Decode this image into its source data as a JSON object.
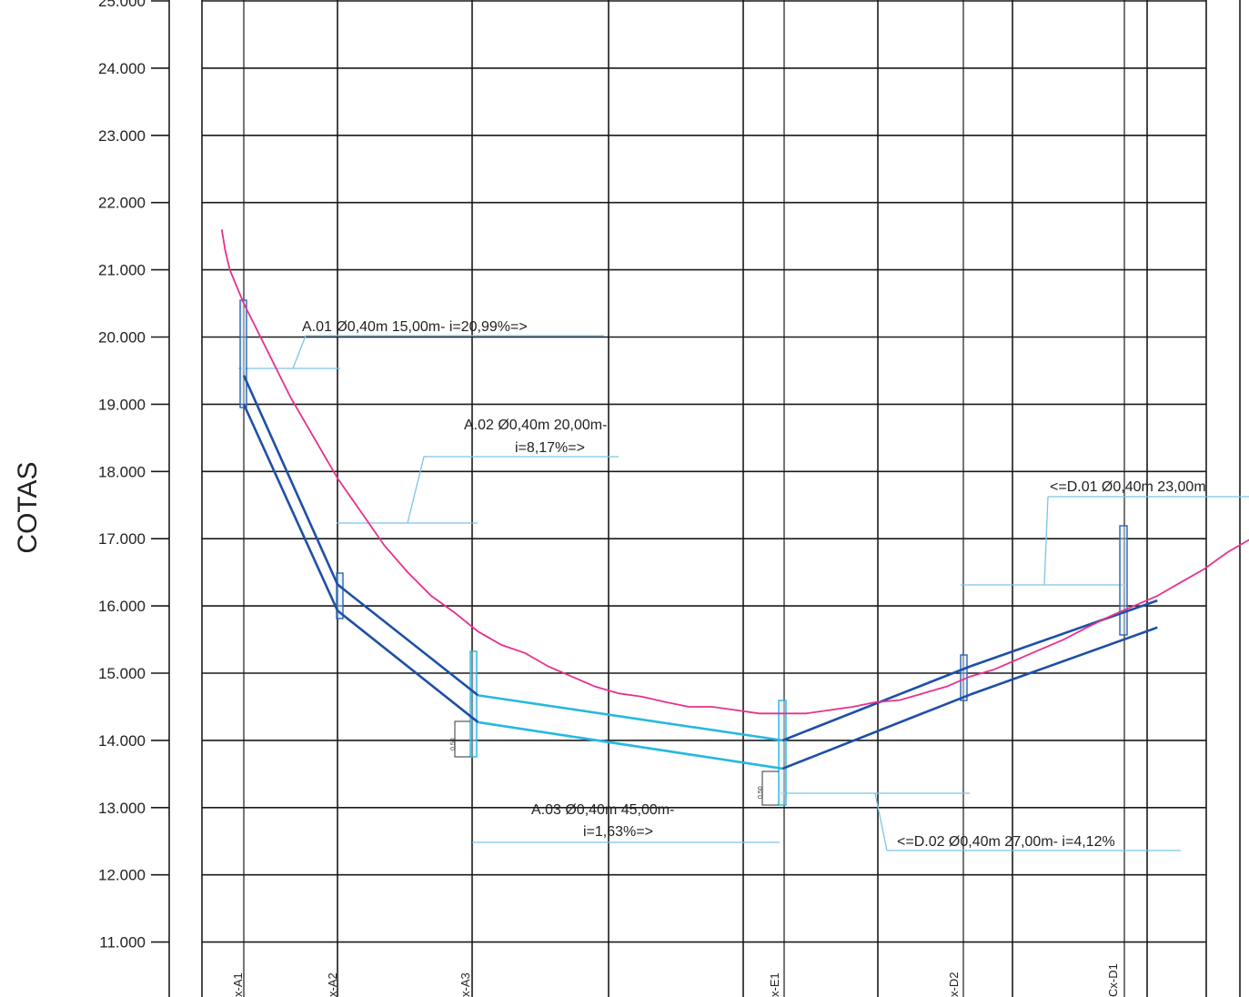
{
  "axis": {
    "title": "COTAS",
    "min": 11,
    "max": 25,
    "ticks": [
      "25.000",
      "24.000",
      "23.000",
      "22.000",
      "21.000",
      "20.000",
      "19.000",
      "18.000",
      "17.000",
      "16.000",
      "15.000",
      "14.000",
      "13.000",
      "12.000",
      "11.000"
    ]
  },
  "stations": [
    {
      "id": "A1",
      "label": "x-A1"
    },
    {
      "id": "A2",
      "label": "x-A2"
    },
    {
      "id": "A3",
      "label": "x-A3"
    },
    {
      "id": "E1",
      "label": "x-E1"
    },
    {
      "id": "D2",
      "label": "x-D2"
    },
    {
      "id": "D1",
      "label": "Cx-D1"
    }
  ],
  "pipes": [
    {
      "id": "A01",
      "lines": [
        "A.01  Ø0,40m 15,00m- i=20,99%=>"
      ]
    },
    {
      "id": "A02",
      "lines": [
        "A.02  Ø0,40m 20,00m-",
        "i=8,17%=>"
      ]
    },
    {
      "id": "A03",
      "lines": [
        "A.03  Ø0,40m 45,00m-",
        "i=1,63%=>"
      ]
    },
    {
      "id": "D01",
      "lines": [
        "<=D.01  Ø0,40m 23,00m"
      ]
    },
    {
      "id": "D02",
      "lines": [
        "<=D.02  Ø0,40m 27,00m- i=4,12%"
      ]
    }
  ],
  "drop_labels": [
    "0,50",
    "0,50"
  ],
  "terrain_profile": [
    [
      -0.47,
      21.6
    ],
    [
      -0.4,
      21.3
    ],
    [
      -0.3,
      21.0
    ],
    [
      0,
      20.5
    ],
    [
      0.5,
      19.8
    ],
    [
      1,
      19.1
    ],
    [
      1.5,
      18.5
    ],
    [
      2,
      17.9
    ],
    [
      2.5,
      17.4
    ],
    [
      3,
      16.9
    ],
    [
      3.5,
      16.5
    ],
    [
      4,
      16.15
    ],
    [
      4.5,
      15.9
    ],
    [
      5,
      15.62
    ],
    [
      5.5,
      15.42
    ],
    [
      6,
      15.3
    ],
    [
      6.5,
      15.1
    ],
    [
      7,
      14.95
    ],
    [
      7.5,
      14.8
    ],
    [
      8,
      14.7
    ],
    [
      8.5,
      14.65
    ],
    [
      9,
      14.57
    ],
    [
      9.5,
      14.5
    ],
    [
      10,
      14.5
    ],
    [
      10.5,
      14.45
    ],
    [
      11,
      14.4
    ],
    [
      11.5,
      14.4
    ],
    [
      12,
      14.4
    ],
    [
      12.5,
      14.45
    ],
    [
      13,
      14.5
    ],
    [
      13.5,
      14.57
    ],
    [
      14,
      14.6
    ],
    [
      14.5,
      14.7
    ],
    [
      15,
      14.8
    ],
    [
      15.5,
      14.95
    ],
    [
      16,
      15.05
    ],
    [
      16.5,
      15.2
    ],
    [
      17,
      15.35
    ],
    [
      17.5,
      15.5
    ],
    [
      18,
      15.68
    ],
    [
      18.5,
      15.85
    ],
    [
      19,
      16.0
    ],
    [
      19.5,
      16.15
    ],
    [
      20,
      16.35
    ],
    [
      20.5,
      16.55
    ],
    [
      21,
      16.8
    ],
    [
      21.5,
      17.0
    ],
    [
      22,
      17.2
    ],
    [
      22.5,
      17.45
    ],
    [
      23,
      17.7
    ],
    [
      23.5,
      17.95
    ],
    [
      23.8,
      18.05
    ]
  ],
  "pipe_top": [
    [
      0,
      19.43
    ],
    [
      2,
      16.32
    ],
    [
      5,
      14.67
    ],
    [
      11.5,
      14.0
    ],
    [
      15.5,
      15.1
    ],
    [
      19.5,
      16.08
    ]
  ],
  "pipe_invert": [
    [
      0,
      19.0
    ],
    [
      2,
      15.93
    ],
    [
      5,
      14.27
    ],
    [
      11.5,
      13.58
    ],
    [
      15.5,
      14.68
    ],
    [
      19.5,
      15.68
    ]
  ],
  "colors": {
    "terrain": "#e8308c",
    "pipe_dark": "#1e4fa6",
    "pipe_light": "#26b8e0",
    "grid": "#1a1a1a",
    "leader": "#7cc4e6"
  }
}
